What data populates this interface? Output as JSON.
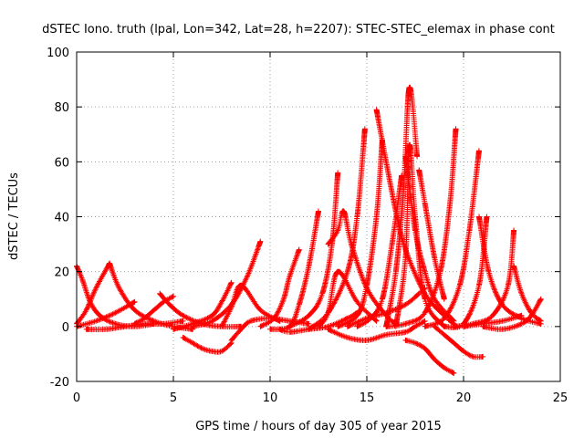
{
  "chart_data": {
    "type": "scatter",
    "title": "dSTEC Iono. truth (lpal, Lon=342, Lat=28, h=2207): STEC-STEC_elemax in phase cont",
    "xlabel": "GPS time / hours of day 305 of year 2015",
    "ylabel": "dSTEC  / TECUs",
    "xlim": [
      0,
      25
    ],
    "ylim": [
      -20,
      100
    ],
    "xticks": [
      0,
      5,
      10,
      15,
      20,
      25
    ],
    "yticks": [
      -20,
      0,
      20,
      40,
      60,
      80,
      100
    ],
    "xtick_labels": [
      "0",
      "5",
      "10",
      "15",
      "20",
      "25"
    ],
    "ytick_labels": [
      "-20",
      "0",
      "20",
      "40",
      "60",
      "80",
      "100"
    ],
    "grid": true,
    "marker": "+",
    "color": "#ff0000",
    "series": [
      {
        "x": [
          0.0,
          0.3,
          0.7,
          1.2,
          2.0,
          3.0,
          4.0
        ],
        "y": [
          22,
          17,
          9,
          4,
          1,
          0,
          1
        ]
      },
      {
        "x": [
          0.0,
          0.5,
          1.0,
          1.7
        ],
        "y": [
          1,
          6,
          14,
          23
        ]
      },
      {
        "x": [
          1.7,
          2.2,
          3.0,
          4.0,
          5.0,
          6.0
        ],
        "y": [
          23,
          14,
          6,
          2,
          0,
          -1
        ]
      },
      {
        "x": [
          0.0,
          1.0,
          2.0,
          3.0
        ],
        "y": [
          0,
          2,
          5,
          9
        ]
      },
      {
        "x": [
          0.5,
          1.5,
          2.5,
          3.5,
          4.5,
          5.5
        ],
        "y": [
          -1,
          -1,
          0,
          1,
          1,
          2
        ]
      },
      {
        "x": [
          3.0,
          3.5,
          4.0,
          4.5,
          5.0
        ],
        "y": [
          1,
          3,
          6,
          9,
          11
        ]
      },
      {
        "x": [
          4.3,
          4.8,
          5.5,
          6.5,
          7.5,
          8.5
        ],
        "y": [
          12,
          8,
          4,
          1,
          0,
          0
        ]
      },
      {
        "x": [
          5.5,
          6.0,
          6.5,
          7.0,
          7.5,
          8.0
        ],
        "y": [
          -4,
          -6,
          -8,
          -9,
          -9,
          -6
        ]
      },
      {
        "x": [
          5.0,
          6.0,
          7.0,
          7.5,
          8.0
        ],
        "y": [
          -1,
          1,
          4,
          9,
          16
        ]
      },
      {
        "x": [
          6.0,
          7.0,
          8.0,
          8.8,
          9.5
        ],
        "y": [
          0,
          2,
          8,
          18,
          31
        ]
      },
      {
        "x": [
          8.0,
          8.5,
          9.0,
          10.0,
          11.0,
          12.0
        ],
        "y": [
          -5,
          -1,
          2,
          3,
          2,
          1
        ]
      },
      {
        "x": [
          7.5,
          8.0,
          8.5,
          9.5,
          10.5
        ],
        "y": [
          0,
          7,
          15,
          6,
          2
        ]
      },
      {
        "x": [
          9.5,
          10.2,
          10.7,
          11.0,
          11.5
        ],
        "y": [
          0,
          3,
          10,
          18,
          28
        ]
      },
      {
        "x": [
          10.0,
          11.0,
          11.5,
          12.0,
          12.5
        ],
        "y": [
          -1,
          0,
          8,
          22,
          42
        ]
      },
      {
        "x": [
          10.5,
          11.0,
          12.0,
          13.0,
          14.0,
          14.5
        ],
        "y": [
          -1,
          -2,
          -1,
          0,
          3,
          5
        ]
      },
      {
        "x": [
          11.0,
          12.0,
          12.7,
          13.2,
          13.5
        ],
        "y": [
          0,
          4,
          12,
          30,
          56
        ]
      },
      {
        "x": [
          13.0,
          13.5,
          13.8,
          14.2,
          15.0,
          16.0,
          16.5
        ],
        "y": [
          30,
          35,
          42,
          30,
          14,
          4,
          1
        ]
      },
      {
        "x": [
          12.5,
          13.0,
          13.5,
          14.5,
          15.5
        ],
        "y": [
          0,
          5,
          20,
          9,
          2
        ]
      },
      {
        "x": [
          12.0,
          13.0,
          14.0,
          14.5,
          14.9
        ],
        "y": [
          -1,
          5,
          20,
          40,
          72
        ]
      },
      {
        "x": [
          13.5,
          14.5,
          15.0,
          15.5,
          15.8
        ],
        "y": [
          0,
          4,
          15,
          40,
          68
        ]
      },
      {
        "x": [
          13.0,
          14.0,
          15.0,
          16.0,
          17.0,
          17.5,
          18.0
        ],
        "y": [
          -1,
          -4,
          -5,
          -3,
          -2,
          0,
          2
        ]
      },
      {
        "x": [
          14.0,
          15.0,
          16.0,
          17.0,
          17.7,
          18.0
        ],
        "y": [
          0,
          3,
          5,
          8,
          12,
          14
        ]
      },
      {
        "x": [
          15.5,
          16.0,
          16.5,
          17.0,
          18.0,
          19.0,
          19.5
        ],
        "y": [
          79,
          60,
          42,
          28,
          12,
          4,
          1
        ]
      },
      {
        "x": [
          14.5,
          15.2,
          15.8,
          16.3,
          16.8
        ],
        "y": [
          0,
          3,
          10,
          30,
          55
        ]
      },
      {
        "x": [
          16.0,
          16.5,
          16.9,
          17.2,
          17.6
        ],
        "y": [
          0,
          20,
          50,
          87,
          62
        ]
      },
      {
        "x": [
          17.0,
          17.5,
          18.0,
          18.5,
          19.5
        ],
        "y": [
          62,
          35,
          20,
          10,
          2
        ]
      },
      {
        "x": [
          16.5,
          17.0,
          17.2,
          17.5,
          18.0,
          19.0
        ],
        "y": [
          0,
          25,
          66,
          40,
          10,
          0
        ]
      },
      {
        "x": [
          17.0,
          17.5,
          18.0,
          18.5,
          19.0,
          19.5
        ],
        "y": [
          -5,
          -6,
          -8,
          -12,
          -15,
          -17
        ]
      },
      {
        "x": [
          17.7,
          18.0,
          18.5,
          19.0
        ],
        "y": [
          57,
          45,
          25,
          10
        ]
      },
      {
        "x": [
          16.0,
          17.0,
          18.0,
          18.8,
          19.3,
          19.6
        ],
        "y": [
          0,
          1,
          5,
          20,
          45,
          72
        ]
      },
      {
        "x": [
          18.5,
          19.0,
          19.5,
          20.0,
          20.5,
          21.0
        ],
        "y": [
          0,
          -3,
          -6,
          -9,
          -11,
          -11
        ]
      },
      {
        "x": [
          18.0,
          19.0,
          19.8,
          20.3,
          20.8
        ],
        "y": [
          0,
          3,
          15,
          35,
          64
        ]
      },
      {
        "x": [
          19.0,
          20.0,
          20.8,
          21.2
        ],
        "y": [
          0,
          1,
          15,
          40
        ]
      },
      {
        "x": [
          20.8,
          21.3,
          22.0,
          23.0,
          24.0
        ],
        "y": [
          40,
          20,
          8,
          3,
          1
        ]
      },
      {
        "x": [
          19.5,
          20.5,
          21.5,
          22.3,
          22.6
        ],
        "y": [
          0,
          1,
          4,
          15,
          35
        ]
      },
      {
        "x": [
          22.6,
          23.0,
          23.5,
          24.0
        ],
        "y": [
          22,
          12,
          5,
          2
        ]
      },
      {
        "x": [
          21.0,
          22.0,
          23.0,
          23.5,
          24.0
        ],
        "y": [
          0,
          -1,
          1,
          4,
          10
        ]
      },
      {
        "x": [
          20.0,
          21.0,
          22.0,
          23.0
        ],
        "y": [
          0,
          1,
          2,
          4
        ]
      }
    ]
  }
}
